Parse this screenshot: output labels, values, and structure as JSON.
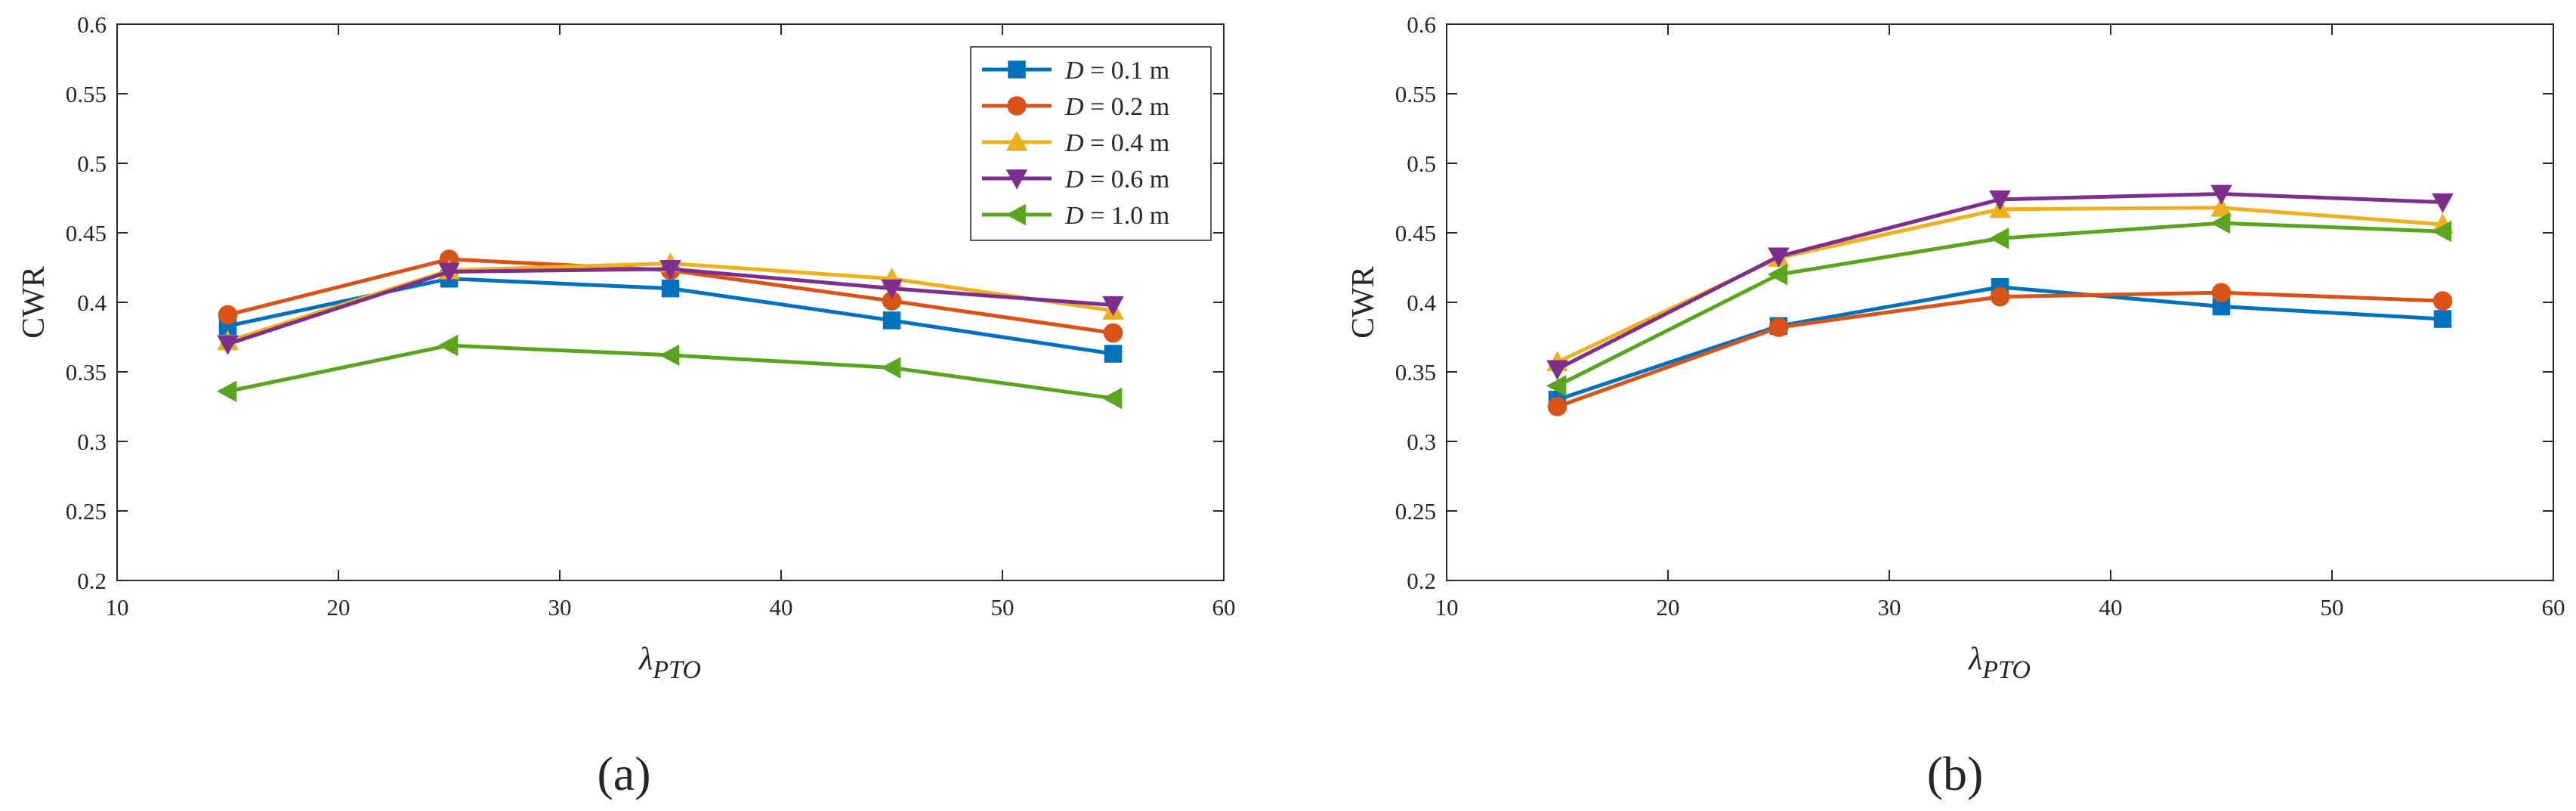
{
  "figure": {
    "panel_labels": [
      "(a)",
      "(b)"
    ]
  },
  "series_styles": [
    {
      "name": "D = 0.1 m",
      "color": "#0072BD",
      "marker": "square"
    },
    {
      "name": "D = 0.2 m",
      "color": "#D95319",
      "marker": "circle"
    },
    {
      "name": "D = 0.4 m",
      "color": "#EDB120",
      "marker": "triangle-up"
    },
    {
      "name": "D = 0.6 m",
      "color": "#7E2F8E",
      "marker": "triangle-down"
    },
    {
      "name": "D = 1.0 m",
      "color": "#5AA51E",
      "marker": "triangle-left"
    }
  ],
  "legend": {
    "prefix": "D",
    "entries": [
      " = 0.1 m",
      " = 0.2 m",
      " = 0.4 m",
      " = 0.6 m",
      " = 1.0 m"
    ]
  },
  "chart_data": [
    {
      "type": "line",
      "panel": "(a)",
      "title": "",
      "xlabel": "λ",
      "xlabel_subscript": "PTO",
      "ylabel": "CWR",
      "xlim": [
        10,
        60
      ],
      "ylim": [
        0.2,
        0.6
      ],
      "xticks": [
        "10",
        "20",
        "30",
        "40",
        "50",
        "60"
      ],
      "yticks": [
        "0.2",
        "0.25",
        "0.3",
        "0.35",
        "0.4",
        "0.45",
        "0.5",
        "0.55",
        "0.6"
      ],
      "grid": false,
      "legend_position": "top-right",
      "x": [
        15,
        25,
        35,
        45,
        55
      ],
      "series": [
        {
          "name": "D = 0.1 m",
          "values": [
            0.383,
            0.417,
            0.41,
            0.387,
            0.363
          ]
        },
        {
          "name": "D = 0.2 m",
          "values": [
            0.391,
            0.431,
            0.423,
            0.401,
            0.378
          ]
        },
        {
          "name": "D = 0.4 m",
          "values": [
            0.372,
            0.423,
            0.428,
            0.417,
            0.394
          ]
        },
        {
          "name": "D = 0.6 m",
          "values": [
            0.37,
            0.422,
            0.424,
            0.41,
            0.398
          ]
        },
        {
          "name": "D = 1.0 m",
          "values": [
            0.336,
            0.369,
            0.362,
            0.353,
            0.331
          ]
        }
      ]
    },
    {
      "type": "line",
      "panel": "(b)",
      "title": "",
      "xlabel": "λ",
      "xlabel_subscript": "PTO",
      "ylabel": "CWR",
      "xlim": [
        10,
        60
      ],
      "ylim": [
        0.2,
        0.6
      ],
      "xticks": [
        "10",
        "20",
        "30",
        "40",
        "50",
        "60"
      ],
      "yticks": [
        "0.2",
        "0.25",
        "0.3",
        "0.35",
        "0.4",
        "0.45",
        "0.5",
        "0.55",
        "0.6"
      ],
      "grid": false,
      "legend_position": "none",
      "x": [
        15,
        25,
        35,
        45,
        55
      ],
      "series": [
        {
          "name": "D = 0.1 m",
          "values": [
            0.33,
            0.383,
            0.411,
            0.397,
            0.388
          ]
        },
        {
          "name": "D = 0.2 m",
          "values": [
            0.325,
            0.382,
            0.404,
            0.407,
            0.401
          ]
        },
        {
          "name": "D = 0.4 m",
          "values": [
            0.357,
            0.432,
            0.467,
            0.468,
            0.456
          ]
        },
        {
          "name": "D = 0.6 m",
          "values": [
            0.352,
            0.433,
            0.474,
            0.478,
            0.472
          ]
        },
        {
          "name": "D = 1.0 m",
          "values": [
            0.34,
            0.42,
            0.446,
            0.457,
            0.451
          ]
        }
      ]
    }
  ]
}
